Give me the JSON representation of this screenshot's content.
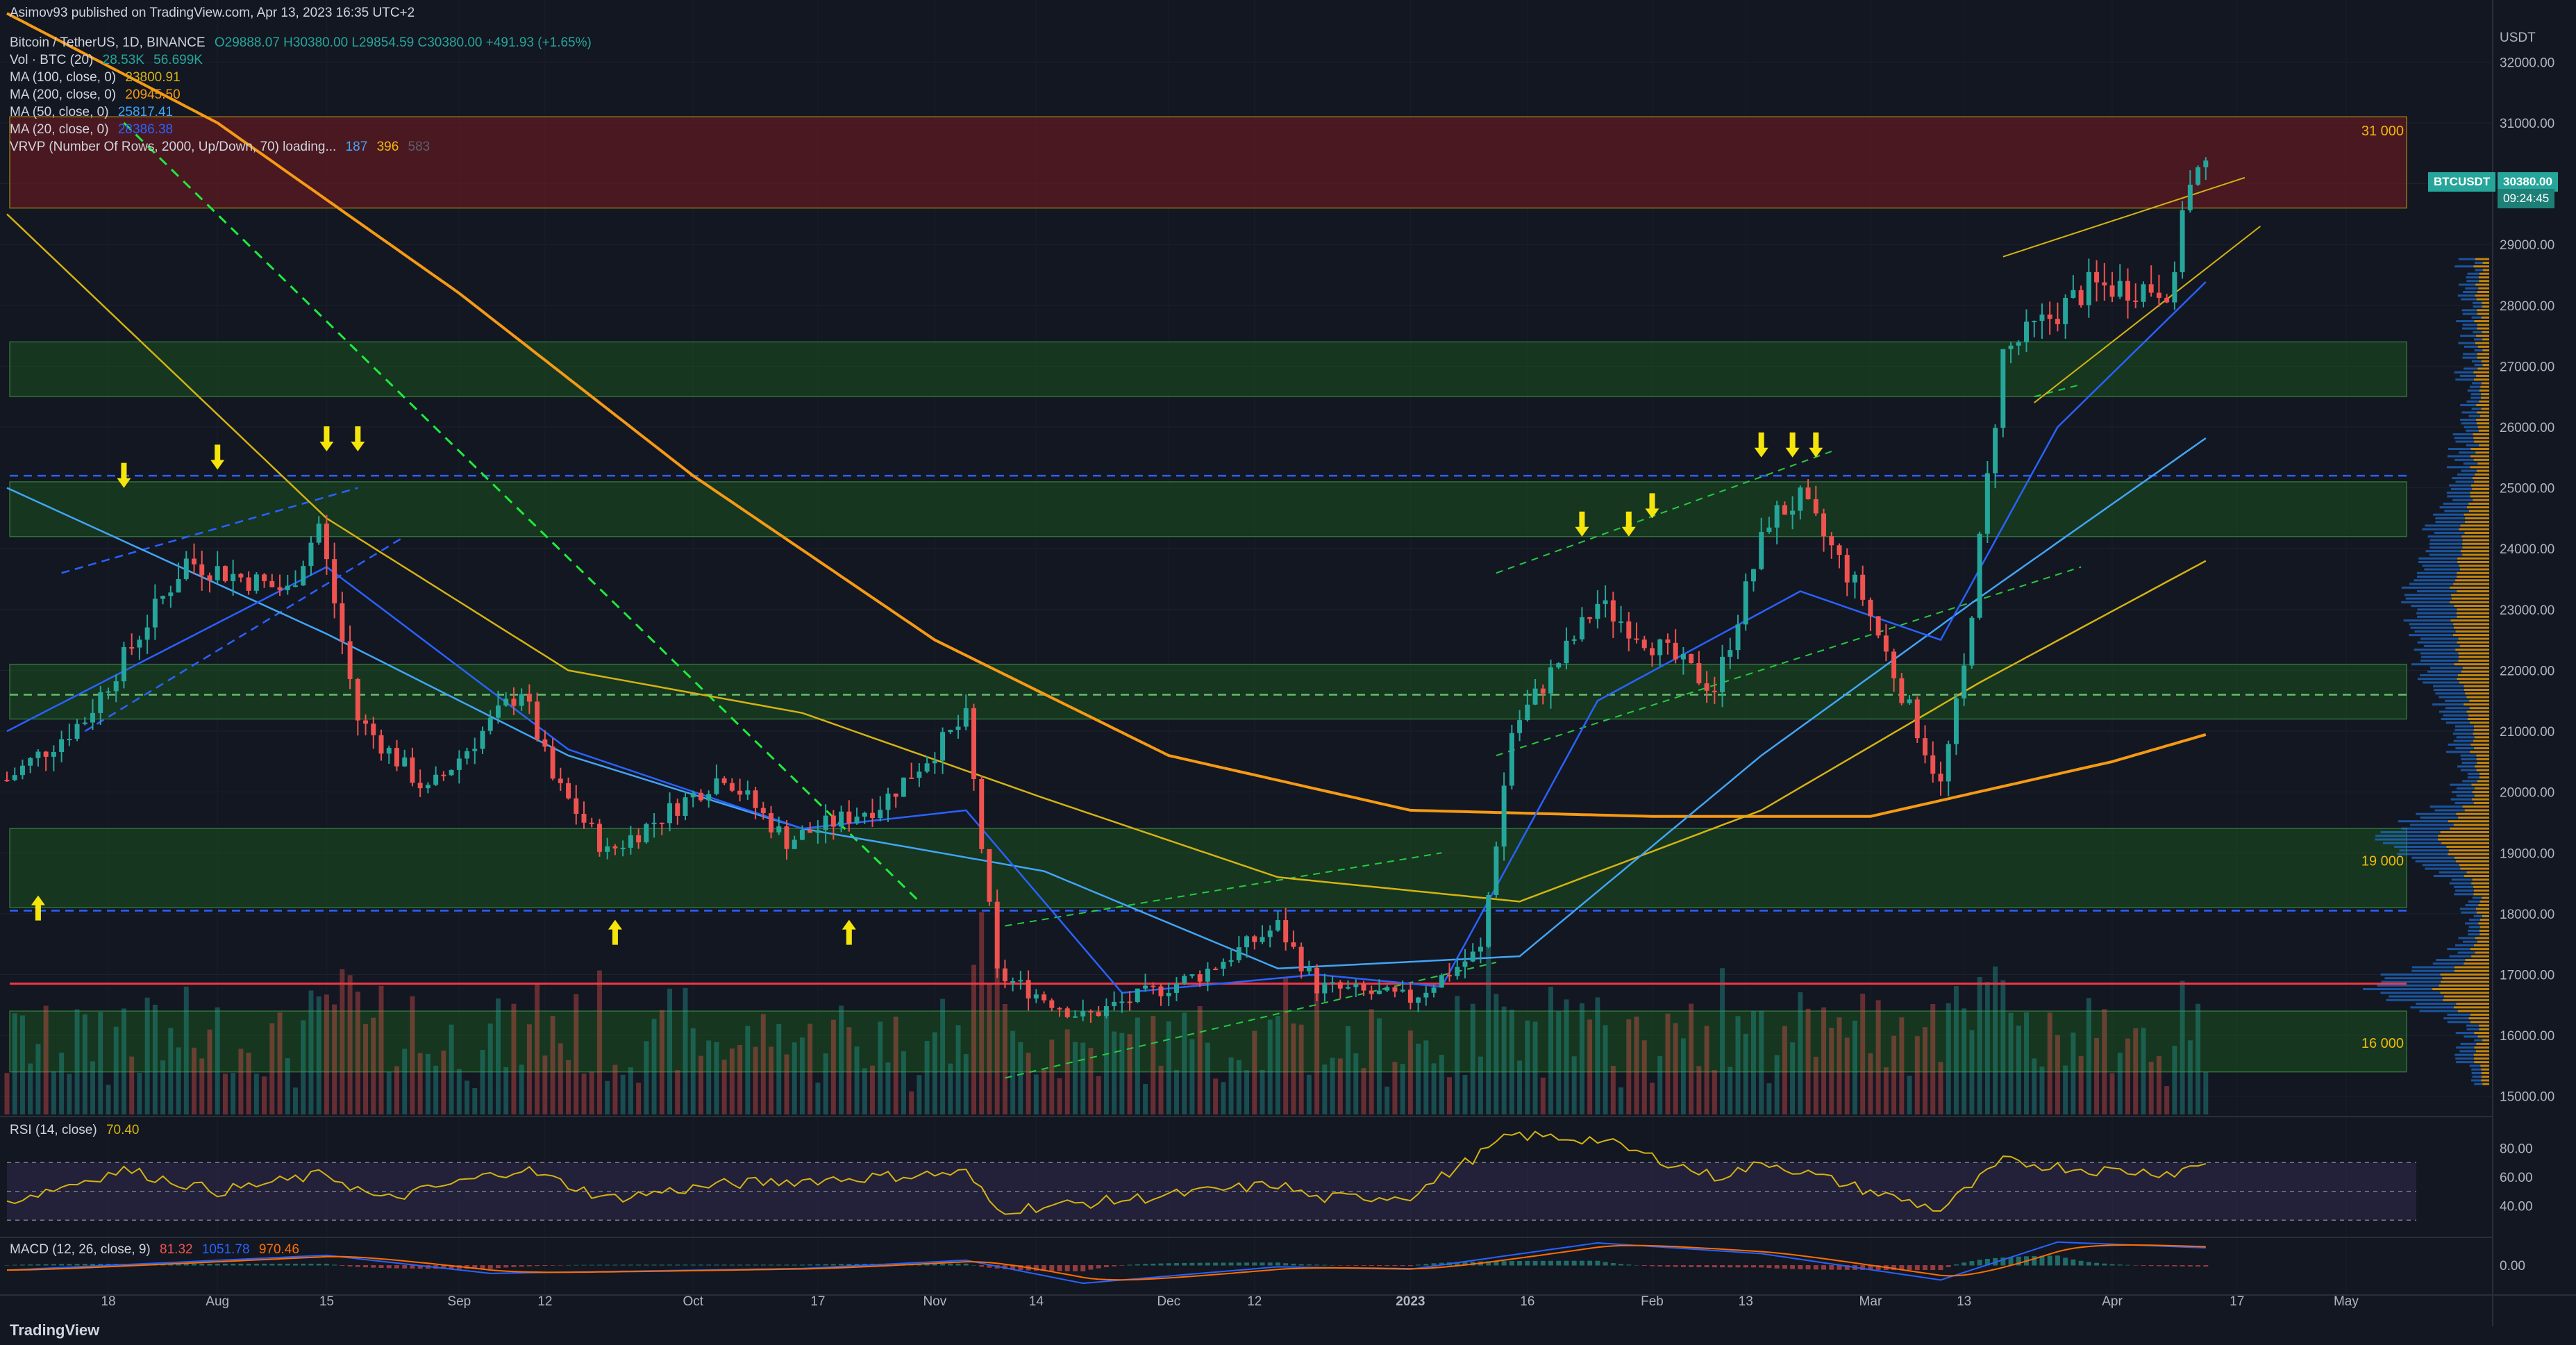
{
  "caption": "Asimov93 published on TradingView.com, Apr 13, 2023 16:35 UTC+2",
  "header": {
    "symbol": "Bitcoin / TetherUS, 1D, BINANCE",
    "ohlc": "O29888.07  H30380.00  L29854.59  C30380.00  +491.93 (+1.65%)",
    "vol_label": "Vol · BTC (20)",
    "vol_values": [
      "28.53K",
      "56.699K"
    ],
    "ma100_label": "MA (100, close, 0)",
    "ma100_value": "23800.91",
    "ma200_label": "MA (200, close, 0)",
    "ma200_value": "20945.50",
    "ma50_label": "MA (50, close, 0)",
    "ma50_value": "25817.41",
    "ma20_label": "MA (20, close, 0)",
    "ma20_value": "28386.38",
    "vrvp_label": "VRVP (Number Of Rows, 2000, Up/Down, 70) loading...",
    "vrvp_values": [
      "187",
      "396",
      "583"
    ]
  },
  "price_axis": {
    "currency": "USDT",
    "ticks": [
      "32000.00",
      "31000.00",
      "30000.00",
      "29000.00",
      "28000.00",
      "27000.00",
      "26000.00",
      "25000.00",
      "24000.00",
      "23000.00",
      "22000.00",
      "21000.00",
      "20000.00",
      "19000.00",
      "18000.00",
      "17000.00",
      "16000.00",
      "15000.00"
    ]
  },
  "price_tag": {
    "symbol": "BTCUSDT",
    "price": "30380.00",
    "countdown": "09:24:45"
  },
  "level_labels": [
    "31 000",
    "19 000",
    "16 000"
  ],
  "rsi": {
    "label": "RSI (14, close)",
    "value": "70.40",
    "ticks": [
      "80.00",
      "60.00",
      "40.00"
    ]
  },
  "macd": {
    "label": "MACD (12, 26, close, 9)",
    "values": [
      "81.32",
      "1051.78",
      "970.46"
    ],
    "ticks": [
      "0.00"
    ]
  },
  "time_axis": [
    "18",
    "Aug",
    "15",
    "Sep",
    "12",
    "Oct",
    "17",
    "Nov",
    "14",
    "Dec",
    "12",
    "2023",
    "16",
    "Feb",
    "13",
    "Mar",
    "13",
    "Apr",
    "17",
    "May"
  ],
  "brand": "TradingView",
  "colors": {
    "up": "#26a69a",
    "down": "#ef5350",
    "ma20": "#2962ff",
    "ma50": "#42a5f5",
    "ma100": "#d4b312",
    "ma200": "#f59a14",
    "zone_green": "#1b5e20",
    "zone_red": "#5d1a22",
    "bg": "#131722"
  },
  "chart_data": {
    "type": "candlestick",
    "title": "Bitcoin / TetherUS, 1D, BINANCE",
    "ylim": [
      14700,
      32700
    ],
    "x_range": [
      "2022-07-05",
      "2023-05-10"
    ],
    "anchors": [
      [
        "2022-07-05",
        20200
      ],
      [
        "2022-07-15",
        21200
      ],
      [
        "2022-07-28",
        23800
      ],
      [
        "2022-08-10",
        23300
      ],
      [
        "2022-08-14",
        24400
      ],
      [
        "2022-08-19",
        21200
      ],
      [
        "2022-08-28",
        20000
      ],
      [
        "2022-09-09",
        21700
      ],
      [
        "2022-09-13",
        20200
      ],
      [
        "2022-09-20",
        19000
      ],
      [
        "2022-10-05",
        20300
      ],
      [
        "2022-10-13",
        19200
      ],
      [
        "2022-10-25",
        19800
      ],
      [
        "2022-11-05",
        21200
      ],
      [
        "2022-11-09",
        17000
      ],
      [
        "2022-11-20",
        16300
      ],
      [
        "2022-12-05",
        17000
      ],
      [
        "2022-12-15",
        17800
      ],
      [
        "2022-12-20",
        16800
      ],
      [
        "2023-01-01",
        16600
      ],
      [
        "2023-01-10",
        17400
      ],
      [
        "2023-01-14",
        21000
      ],
      [
        "2023-01-25",
        23100
      ],
      [
        "2023-02-09",
        21700
      ],
      [
        "2023-02-16",
        24500
      ],
      [
        "2023-02-20",
        24800
      ],
      [
        "2023-02-28",
        23200
      ],
      [
        "2023-03-10",
        20100
      ],
      [
        "2023-03-13",
        22000
      ],
      [
        "2023-03-18",
        27200
      ],
      [
        "2023-03-29",
        28300
      ],
      [
        "2023-04-09",
        28300
      ],
      [
        "2023-04-10",
        29700
      ],
      [
        "2023-04-13",
        30380
      ]
    ],
    "ma200": [
      [
        "2022-07-05",
        32800
      ],
      [
        "2022-08-01",
        31000
      ],
      [
        "2022-09-01",
        28200
      ],
      [
        "2022-10-01",
        25200
      ],
      [
        "2022-11-01",
        22500
      ],
      [
        "2022-12-01",
        20600
      ],
      [
        "2023-01-01",
        19700
      ],
      [
        "2023-02-01",
        19600
      ],
      [
        "2023-03-01",
        19600
      ],
      [
        "2023-04-01",
        20500
      ],
      [
        "2023-04-13",
        20945
      ]
    ],
    "ma100": [
      [
        "2022-07-05",
        29500
      ],
      [
        "2022-08-15",
        24500
      ],
      [
        "2022-09-15",
        22000
      ],
      [
        "2022-10-15",
        21300
      ],
      [
        "2022-11-15",
        19900
      ],
      [
        "2022-12-15",
        18600
      ],
      [
        "2023-01-15",
        18200
      ],
      [
        "2023-02-15",
        19700
      ],
      [
        "2023-03-15",
        21800
      ],
      [
        "2023-04-13",
        23800
      ]
    ],
    "ma50": [
      [
        "2022-07-05",
        25000
      ],
      [
        "2022-08-15",
        22600
      ],
      [
        "2022-09-15",
        20600
      ],
      [
        "2022-10-15",
        19400
      ],
      [
        "2022-11-15",
        18700
      ],
      [
        "2022-12-15",
        17100
      ],
      [
        "2023-01-15",
        17300
      ],
      [
        "2023-02-15",
        20600
      ],
      [
        "2023-03-15",
        23200
      ],
      [
        "2023-04-13",
        25817
      ]
    ],
    "ma20": [
      [
        "2022-07-05",
        21000
      ],
      [
        "2022-08-15",
        23700
      ],
      [
        "2022-09-15",
        20700
      ],
      [
        "2022-10-15",
        19400
      ],
      [
        "2022-11-05",
        19700
      ],
      [
        "2022-11-25",
        16700
      ],
      [
        "2022-12-20",
        17000
      ],
      [
        "2023-01-05",
        16800
      ],
      [
        "2023-01-25",
        21500
      ],
      [
        "2023-02-20",
        23300
      ],
      [
        "2023-03-10",
        22500
      ],
      [
        "2023-03-25",
        26000
      ],
      [
        "2023-04-13",
        28386
      ]
    ],
    "zones": [
      {
        "from": 29600,
        "to": 31100,
        "kind": "resistance"
      },
      {
        "from": 26500,
        "to": 27400,
        "kind": "support"
      },
      {
        "from": 24200,
        "to": 25100,
        "kind": "support"
      },
      {
        "from": 21200,
        "to": 22100,
        "kind": "support"
      },
      {
        "from": 18100,
        "to": 19400,
        "kind": "support"
      },
      {
        "from": 15400,
        "to": 16400,
        "kind": "support"
      }
    ],
    "hlines": [
      {
        "y": 25200,
        "style": "dashed",
        "color": "#2962ff"
      },
      {
        "y": 18050,
        "style": "dashed",
        "color": "#2962ff"
      },
      {
        "y": 16850,
        "style": "solid",
        "color": "#f23645"
      },
      {
        "y": 21600,
        "style": "dashed",
        "color": "#66bb6a"
      }
    ],
    "arrows_down": [
      [
        "2022-07-20",
        25000
      ],
      [
        "2022-08-01",
        25300
      ],
      [
        "2022-08-15",
        25600
      ],
      [
        "2022-08-19",
        25600
      ],
      [
        "2023-01-23",
        24200
      ],
      [
        "2023-01-29",
        24200
      ],
      [
        "2023-02-01",
        24500
      ],
      [
        "2023-02-15",
        25500
      ],
      [
        "2023-02-19",
        25500
      ],
      [
        "2023-02-22",
        25500
      ]
    ],
    "arrows_up": [
      [
        "2022-07-09",
        18300
      ],
      [
        "2022-09-21",
        17900
      ],
      [
        "2022-10-21",
        17900
      ]
    ],
    "rsi_anchors": [
      [
        "2022-07-05",
        43
      ],
      [
        "2022-07-20",
        65
      ],
      [
        "2022-08-01",
        50
      ],
      [
        "2022-08-15",
        62
      ],
      [
        "2022-08-22",
        44
      ],
      [
        "2022-09-09",
        66
      ],
      [
        "2022-09-20",
        45
      ],
      [
        "2022-10-05",
        55
      ],
      [
        "2022-11-05",
        63
      ],
      [
        "2022-11-09",
        37
      ],
      [
        "2022-11-25",
        44
      ],
      [
        "2022-12-15",
        55
      ],
      [
        "2022-12-20",
        45
      ],
      [
        "2023-01-01",
        47
      ],
      [
        "2023-01-14",
        89
      ],
      [
        "2023-01-25",
        86
      ],
      [
        "2023-02-09",
        60
      ],
      [
        "2023-02-16",
        70
      ],
      [
        "2023-03-01",
        50
      ],
      [
        "2023-03-10",
        37
      ],
      [
        "2023-03-18",
        71
      ],
      [
        "2023-03-29",
        65
      ],
      [
        "2023-04-09",
        63
      ],
      [
        "2023-04-13",
        70.4
      ]
    ],
    "macd_anchors": [
      [
        "2022-07-05",
        -300
      ],
      [
        "2022-08-15",
        600
      ],
      [
        "2022-09-05",
        -500
      ],
      [
        "2022-10-15",
        -200
      ],
      [
        "2022-11-05",
        300
      ],
      [
        "2022-11-20",
        -1100
      ],
      [
        "2022-12-15",
        -100
      ],
      [
        "2023-01-01",
        -250
      ],
      [
        "2023-01-25",
        1350
      ],
      [
        "2023-02-15",
        700
      ],
      [
        "2023-03-10",
        -900
      ],
      [
        "2023-03-25",
        1400
      ],
      [
        "2023-04-13",
        1051
      ]
    ]
  }
}
